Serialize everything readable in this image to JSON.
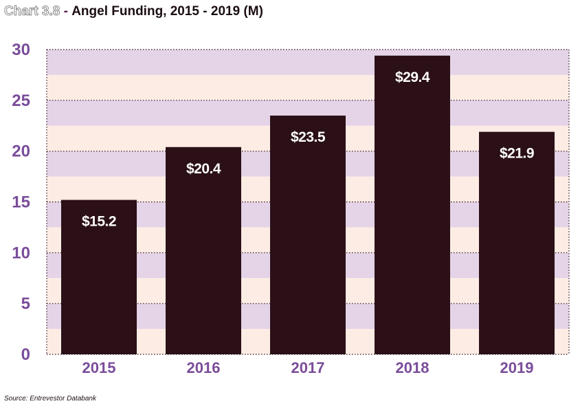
{
  "title": {
    "prefix": "Chart 3.8",
    "separator": "-",
    "text": "Angel Funding, 2015 - 2019 (M)"
  },
  "source": "Source: Entrevestor Databank",
  "colors": {
    "bar": "#2b1017",
    "band_dark": "#e5d3e8",
    "band_light": "#fdece4",
    "axis_label": "#7a4c9a",
    "bar_label": "#ffffff"
  },
  "chart_data": {
    "type": "bar",
    "categories": [
      "2015",
      "2016",
      "2017",
      "2018",
      "2019"
    ],
    "values": [
      15.2,
      20.4,
      23.5,
      29.4,
      21.9
    ],
    "data_labels": [
      "$15.2",
      "$20.4",
      "$23.5",
      "$29.4",
      "$21.9"
    ],
    "yticks": [
      0,
      5,
      10,
      15,
      20,
      25,
      30
    ],
    "ylim": [
      0,
      30
    ],
    "grid": true,
    "legend": "none"
  }
}
